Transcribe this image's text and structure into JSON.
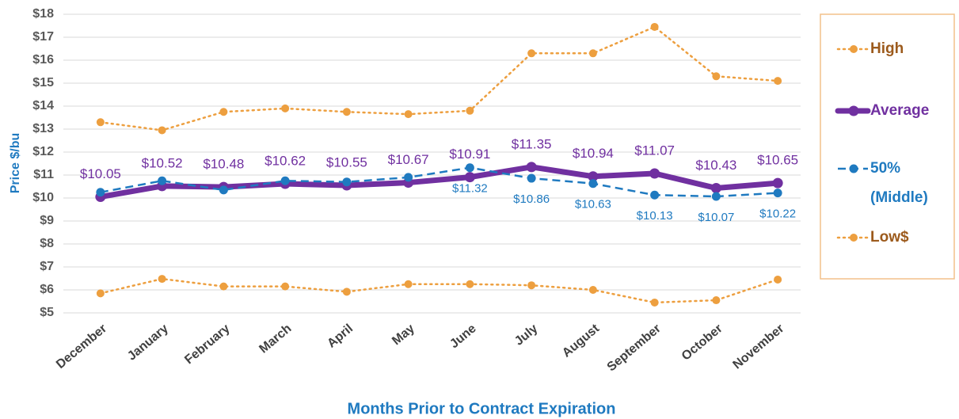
{
  "chart_data": {
    "type": "line",
    "y_label": "Price $/bu",
    "x_label": "Months Prior to Contract Expiration",
    "categories": [
      "December",
      "January",
      "February",
      "March",
      "April",
      "May",
      "June",
      "July",
      "August",
      "September",
      "October",
      "November"
    ],
    "ylim": [
      5,
      18
    ],
    "yticks": [
      {
        "value": 5,
        "label": "$5"
      },
      {
        "value": 6,
        "label": "$6"
      },
      {
        "value": 7,
        "label": "$7"
      },
      {
        "value": 8,
        "label": "$8"
      },
      {
        "value": 9,
        "label": "$9"
      },
      {
        "value": 10,
        "label": "$10"
      },
      {
        "value": 11,
        "label": "$11"
      },
      {
        "value": 12,
        "label": "$12"
      },
      {
        "value": 13,
        "label": "$13"
      },
      {
        "value": 14,
        "label": "$14"
      },
      {
        "value": 15,
        "label": "$15"
      },
      {
        "value": 16,
        "label": "$16"
      },
      {
        "value": 17,
        "label": "$17"
      },
      {
        "value": 18,
        "label": "$18"
      }
    ],
    "grid": true,
    "legend": "right",
    "series": [
      {
        "name": "High",
        "color": "#ed9f3f",
        "style": "dotted",
        "values": [
          13.3,
          12.95,
          13.75,
          13.9,
          13.75,
          13.65,
          13.8,
          16.3,
          16.3,
          17.45,
          15.3,
          15.1
        ]
      },
      {
        "name": "Average",
        "color": "#7030a0",
        "style": "thick",
        "values": [
          10.05,
          10.52,
          10.48,
          10.62,
          10.55,
          10.67,
          10.91,
          11.35,
          10.94,
          11.07,
          10.43,
          10.65
        ],
        "value_labels": [
          "$10.05",
          "$10.52",
          "$10.48",
          "$10.62",
          "$10.55",
          "$10.67",
          "$10.91",
          "$11.35",
          "$10.94",
          "$11.07",
          "$10.43",
          "$10.65"
        ]
      },
      {
        "name": "50% (Middle)",
        "color": "#1f7ac0",
        "style": "dashed",
        "values": [
          10.25,
          10.75,
          10.35,
          10.75,
          10.7,
          10.9,
          11.32,
          10.86,
          10.63,
          10.13,
          10.07,
          10.22
        ],
        "value_labels": [
          null,
          null,
          null,
          null,
          null,
          null,
          "$11.32",
          "$10.86",
          "$10.63",
          "$10.13",
          "$10.07",
          "$10.22"
        ]
      },
      {
        "name": "Low$",
        "color": "#ed9f3f",
        "style": "dotted",
        "values": [
          5.85,
          6.48,
          6.15,
          6.15,
          5.92,
          6.25,
          6.25,
          6.2,
          6.0,
          5.45,
          5.55,
          6.45
        ]
      }
    ]
  }
}
